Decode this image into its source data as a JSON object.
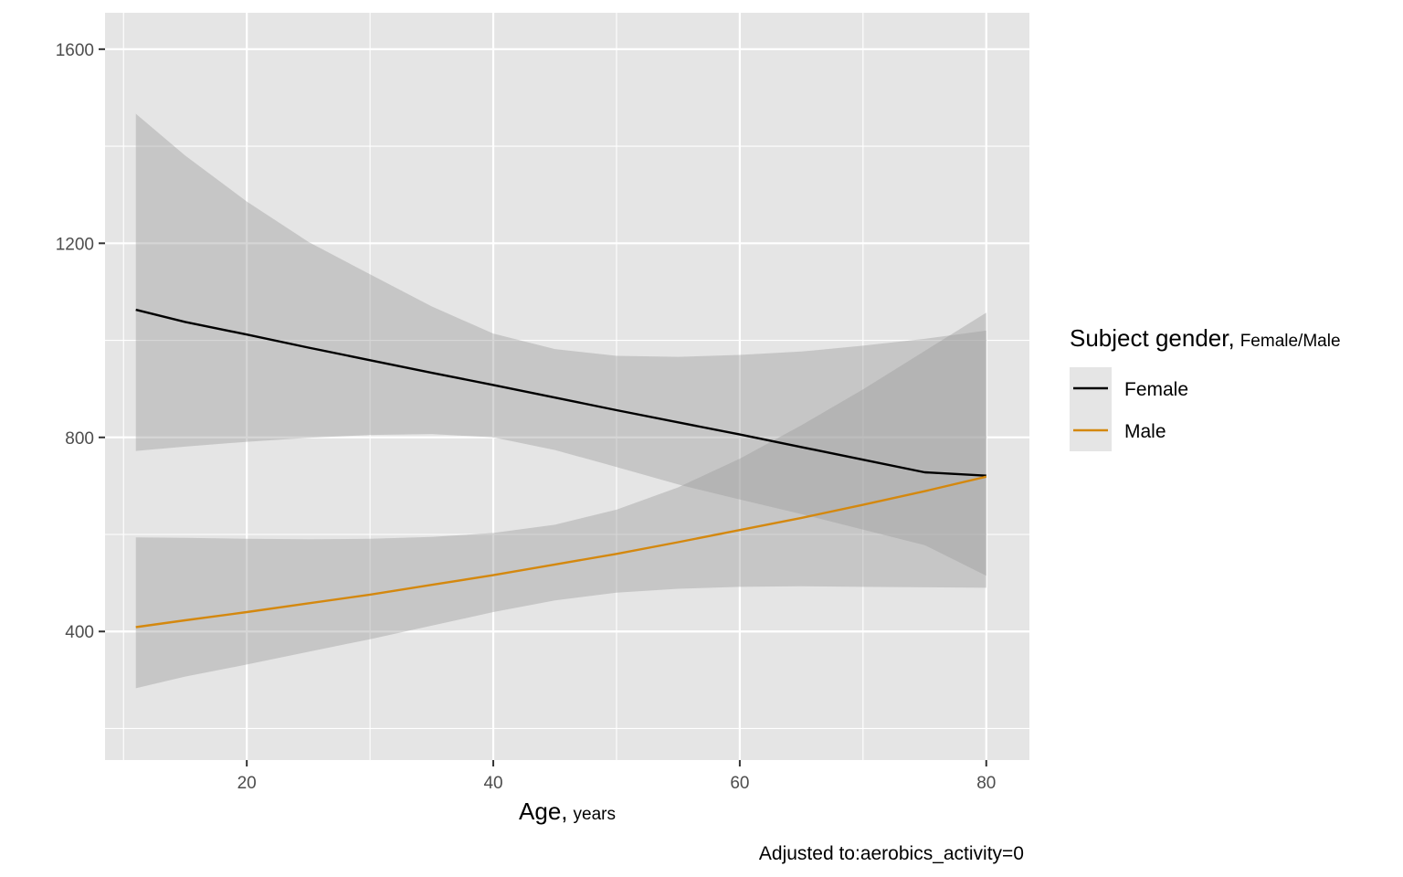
{
  "chart_data": {
    "type": "line",
    "caption": "Adjusted to:aerobics_activity=0",
    "xlabel": {
      "main": "Age,",
      "unit": "years"
    },
    "ylabel": "",
    "xlim": [
      8.5,
      83.5
    ],
    "ylim": [
      135,
      1675
    ],
    "x_ticks": [
      20,
      40,
      60,
      80
    ],
    "x_tick_labels": [
      "20",
      "40",
      "60",
      "80"
    ],
    "y_ticks": [
      400,
      800,
      1200,
      1600
    ],
    "y_tick_labels": [
      "400",
      "800",
      "1200",
      "1600"
    ],
    "grid": true,
    "legend": {
      "title_main": "Subject gender,",
      "title_sub": "Female/Male",
      "position": "right",
      "entries": [
        "Female",
        "Male"
      ]
    },
    "x": [
      11,
      15,
      20,
      25,
      30,
      35,
      40,
      45,
      50,
      55,
      60,
      65,
      70,
      75,
      80
    ],
    "series": [
      {
        "name": "Female",
        "color": "#000000",
        "values": [
          1063,
          1038,
          1012,
          985,
          959,
          933,
          908,
          882,
          856,
          831,
          806,
          780,
          754,
          728,
          721
        ],
        "lower": [
          772,
          781,
          791,
          799,
          805,
          807,
          800,
          774,
          739,
          703,
          672,
          642,
          610,
          578,
          515
        ],
        "upper": [
          1467,
          1381,
          1286,
          1203,
          1136,
          1070,
          1014,
          982,
          968,
          966,
          970,
          977,
          989,
          1003,
          1020
        ]
      },
      {
        "name": "Male",
        "color": "#D4880F",
        "values": [
          409,
          423,
          440,
          458,
          476,
          496,
          516,
          538,
          560,
          584,
          609,
          634,
          661,
          689,
          719
        ],
        "lower": [
          283,
          307,
          332,
          358,
          384,
          412,
          440,
          464,
          480,
          488,
          492,
          493,
          492,
          491,
          490
        ],
        "upper": [
          594,
          593,
          591,
          590,
          591,
          595,
          603,
          620,
          651,
          697,
          756,
          825,
          899,
          978,
          1057
        ]
      }
    ],
    "ribbon_color": "#999999"
  }
}
